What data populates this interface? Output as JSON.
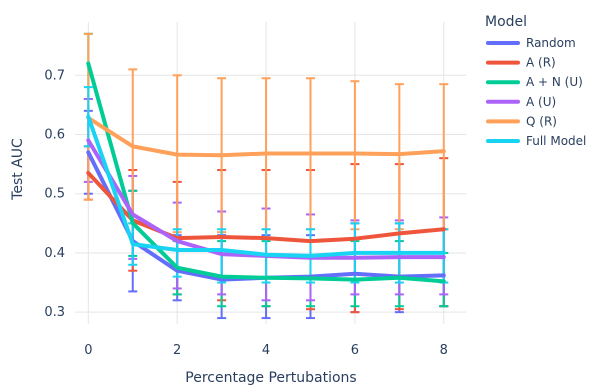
{
  "chart_data": {
    "type": "line",
    "xlabel": "Percentage Pertubations",
    "ylabel": "Test AUC",
    "legend_title": "Model",
    "legend_position": "right",
    "grid": true,
    "xlim": [
      -0.3,
      8.5
    ],
    "ylim": [
      0.28,
      0.79
    ],
    "x_ticks": [
      0,
      2,
      4,
      6,
      8
    ],
    "y_ticks": [
      0.3,
      0.4,
      0.5,
      0.6,
      0.7
    ],
    "x": [
      0,
      1,
      2,
      3,
      4,
      5,
      6,
      7,
      8
    ],
    "series": [
      {
        "name": "Random",
        "color": "#636efa",
        "values": [
          0.57,
          0.42,
          0.37,
          0.355,
          0.358,
          0.36,
          0.365,
          0.36,
          0.362
        ],
        "err_low": [
          0.5,
          0.335,
          0.32,
          0.29,
          0.29,
          0.29,
          0.3,
          0.3,
          0.31
        ],
        "err_high": [
          0.64,
          0.505,
          0.43,
          0.43,
          0.43,
          0.43,
          0.45,
          0.45,
          0.44
        ]
      },
      {
        "name": "A (R)",
        "color": "#ef553b",
        "values": [
          0.535,
          0.455,
          0.425,
          0.427,
          0.425,
          0.42,
          0.424,
          0.433,
          0.44
        ],
        "err_low": [
          0.49,
          0.37,
          0.33,
          0.32,
          0.31,
          0.305,
          0.3,
          0.305,
          0.31
        ],
        "err_high": [
          0.58,
          0.54,
          0.52,
          0.54,
          0.54,
          0.54,
          0.55,
          0.55,
          0.56
        ]
      },
      {
        "name": "A + N (U)",
        "color": "#00cc96",
        "values": [
          0.72,
          0.45,
          0.375,
          0.36,
          0.358,
          0.357,
          0.355,
          0.358,
          0.352
        ],
        "err_low": [
          0.66,
          0.395,
          0.33,
          0.31,
          0.31,
          0.31,
          0.31,
          0.31,
          0.31
        ],
        "err_high": [
          0.77,
          0.505,
          0.42,
          0.42,
          0.42,
          0.42,
          0.42,
          0.42,
          0.4
        ]
      },
      {
        "name": "A (U)",
        "color": "#ab63fa",
        "values": [
          0.59,
          0.465,
          0.42,
          0.398,
          0.395,
          0.392,
          0.392,
          0.393,
          0.393
        ],
        "err_low": [
          0.52,
          0.39,
          0.34,
          0.33,
          0.32,
          0.32,
          0.33,
          0.33,
          0.33
        ],
        "err_high": [
          0.66,
          0.53,
          0.485,
          0.47,
          0.475,
          0.465,
          0.455,
          0.455,
          0.46
        ]
      },
      {
        "name": "Q (R)",
        "color": "#ffa15a",
        "values": [
          0.628,
          0.58,
          0.566,
          0.565,
          0.568,
          0.568,
          0.568,
          0.567,
          0.572
        ],
        "err_low": [
          0.49,
          0.45,
          0.435,
          0.435,
          0.44,
          0.44,
          0.44,
          0.44,
          0.44
        ],
        "err_high": [
          0.77,
          0.71,
          0.7,
          0.695,
          0.695,
          0.695,
          0.69,
          0.685,
          0.685
        ]
      },
      {
        "name": "Full Model",
        "color": "#19d3f3",
        "values": [
          0.63,
          0.415,
          0.405,
          0.405,
          0.397,
          0.395,
          0.4,
          0.4,
          0.4
        ],
        "err_low": [
          0.58,
          0.38,
          0.36,
          0.35,
          0.35,
          0.35,
          0.35,
          0.35,
          0.35
        ],
        "err_high": [
          0.68,
          0.45,
          0.44,
          0.44,
          0.44,
          0.44,
          0.45,
          0.45,
          0.44
        ]
      }
    ]
  }
}
